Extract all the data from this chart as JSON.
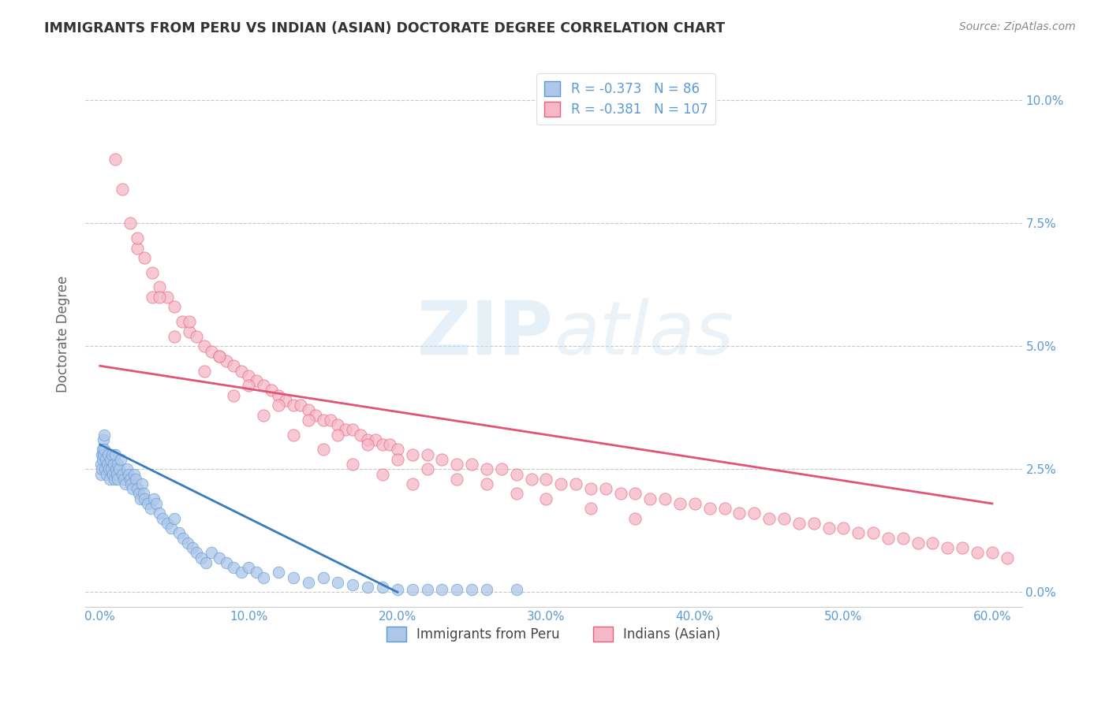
{
  "title": "IMMIGRANTS FROM PERU VS INDIAN (ASIAN) DOCTORATE DEGREE CORRELATION CHART",
  "source": "Source: ZipAtlas.com",
  "xlabel_vals": [
    0.0,
    10.0,
    20.0,
    30.0,
    40.0,
    50.0,
    60.0
  ],
  "ylabel_vals": [
    0.0,
    2.5,
    5.0,
    7.5,
    10.0
  ],
  "ylabel_label": "Doctorate Degree",
  "legend_peru_label": "Immigrants from Peru",
  "legend_indian_label": "Indians (Asian)",
  "peru_R": "-0.373",
  "peru_N": "86",
  "indian_R": "-0.381",
  "indian_N": "107",
  "peru_color": "#aec6e8",
  "peru_edge_color": "#5b9bd5",
  "peru_line_color": "#3a7abf",
  "indian_color": "#f5b8c8",
  "indian_edge_color": "#e8607a",
  "indian_line_color": "#e05575",
  "watermark": "ZIPatlas",
  "background_color": "#ffffff",
  "grid_color": "#c8c8c8",
  "title_color": "#333333",
  "axis_tick_color": "#5b9bd5",
  "legend_text_color": "#5b9bd5",
  "ylabel_text_color": "#666666",
  "peru_reg_x0": 0.0,
  "peru_reg_x1": 20.0,
  "peru_reg_y0": 3.0,
  "peru_reg_y1": 0.0,
  "indian_reg_x0": 0.0,
  "indian_reg_x1": 60.0,
  "indian_reg_y0": 4.6,
  "indian_reg_y1": 1.8,
  "peru_scatter_x": [
    0.05,
    0.08,
    0.1,
    0.12,
    0.15,
    0.18,
    0.2,
    0.22,
    0.25,
    0.3,
    0.35,
    0.4,
    0.45,
    0.5,
    0.55,
    0.6,
    0.65,
    0.7,
    0.75,
    0.8,
    0.85,
    0.9,
    0.95,
    1.0,
    1.05,
    1.1,
    1.15,
    1.2,
    1.3,
    1.4,
    1.5,
    1.6,
    1.7,
    1.8,
    1.9,
    2.0,
    2.1,
    2.2,
    2.3,
    2.4,
    2.5,
    2.6,
    2.7,
    2.8,
    2.9,
    3.0,
    3.2,
    3.4,
    3.6,
    3.8,
    4.0,
    4.2,
    4.5,
    4.8,
    5.0,
    5.3,
    5.6,
    5.9,
    6.2,
    6.5,
    6.8,
    7.1,
    7.5,
    8.0,
    8.5,
    9.0,
    9.5,
    10.0,
    10.5,
    11.0,
    12.0,
    13.0,
    14.0,
    15.0,
    16.0,
    17.0,
    18.0,
    19.0,
    20.0,
    21.0,
    22.0,
    23.0,
    24.0,
    25.0,
    26.0,
    28.0
  ],
  "peru_scatter_y": [
    2.4,
    2.6,
    2.8,
    2.5,
    2.7,
    2.9,
    3.1,
    2.8,
    3.2,
    2.9,
    2.5,
    2.7,
    2.4,
    2.6,
    2.8,
    2.5,
    2.3,
    2.7,
    2.5,
    2.8,
    2.4,
    2.6,
    2.3,
    2.8,
    2.5,
    2.4,
    2.6,
    2.3,
    2.5,
    2.7,
    2.4,
    2.3,
    2.2,
    2.5,
    2.4,
    2.3,
    2.2,
    2.1,
    2.4,
    2.3,
    2.1,
    2.0,
    1.9,
    2.2,
    2.0,
    1.9,
    1.8,
    1.7,
    1.9,
    1.8,
    1.6,
    1.5,
    1.4,
    1.3,
    1.5,
    1.2,
    1.1,
    1.0,
    0.9,
    0.8,
    0.7,
    0.6,
    0.8,
    0.7,
    0.6,
    0.5,
    0.4,
    0.5,
    0.4,
    0.3,
    0.4,
    0.3,
    0.2,
    0.3,
    0.2,
    0.15,
    0.1,
    0.1,
    0.05,
    0.05,
    0.05,
    0.05,
    0.05,
    0.05,
    0.05,
    0.05
  ],
  "indian_scatter_x": [
    1.0,
    1.5,
    2.0,
    2.5,
    3.0,
    3.5,
    4.0,
    4.5,
    5.0,
    5.5,
    6.0,
    6.5,
    7.0,
    7.5,
    8.0,
    8.5,
    9.0,
    9.5,
    10.0,
    10.5,
    11.0,
    11.5,
    12.0,
    12.5,
    13.0,
    13.5,
    14.0,
    14.5,
    15.0,
    15.5,
    16.0,
    16.5,
    17.0,
    17.5,
    18.0,
    18.5,
    19.0,
    19.5,
    20.0,
    21.0,
    22.0,
    23.0,
    24.0,
    25.0,
    26.0,
    27.0,
    28.0,
    29.0,
    30.0,
    31.0,
    32.0,
    33.0,
    34.0,
    35.0,
    36.0,
    37.0,
    38.0,
    39.0,
    40.0,
    41.0,
    42.0,
    43.0,
    44.0,
    45.0,
    46.0,
    47.0,
    48.0,
    49.0,
    50.0,
    51.0,
    52.0,
    53.0,
    54.0,
    55.0,
    56.0,
    57.0,
    58.0,
    59.0,
    60.0,
    61.0,
    6.0,
    8.0,
    10.0,
    12.0,
    14.0,
    16.0,
    18.0,
    20.0,
    22.0,
    24.0,
    3.5,
    5.0,
    7.0,
    9.0,
    11.0,
    13.0,
    15.0,
    17.0,
    19.0,
    21.0,
    2.5,
    4.0,
    26.0,
    28.0,
    30.0,
    33.0,
    36.0
  ],
  "indian_scatter_y": [
    8.8,
    8.2,
    7.5,
    7.0,
    6.8,
    6.5,
    6.2,
    6.0,
    5.8,
    5.5,
    5.3,
    5.2,
    5.0,
    4.9,
    4.8,
    4.7,
    4.6,
    4.5,
    4.4,
    4.3,
    4.2,
    4.1,
    4.0,
    3.9,
    3.8,
    3.8,
    3.7,
    3.6,
    3.5,
    3.5,
    3.4,
    3.3,
    3.3,
    3.2,
    3.1,
    3.1,
    3.0,
    3.0,
    2.9,
    2.8,
    2.8,
    2.7,
    2.6,
    2.6,
    2.5,
    2.5,
    2.4,
    2.3,
    2.3,
    2.2,
    2.2,
    2.1,
    2.1,
    2.0,
    2.0,
    1.9,
    1.9,
    1.8,
    1.8,
    1.7,
    1.7,
    1.6,
    1.6,
    1.5,
    1.5,
    1.4,
    1.4,
    1.3,
    1.3,
    1.2,
    1.2,
    1.1,
    1.1,
    1.0,
    1.0,
    0.9,
    0.9,
    0.8,
    0.8,
    0.7,
    5.5,
    4.8,
    4.2,
    3.8,
    3.5,
    3.2,
    3.0,
    2.7,
    2.5,
    2.3,
    6.0,
    5.2,
    4.5,
    4.0,
    3.6,
    3.2,
    2.9,
    2.6,
    2.4,
    2.2,
    7.2,
    6.0,
    2.2,
    2.0,
    1.9,
    1.7,
    1.5
  ],
  "xlim": [
    -1.0,
    62.0
  ],
  "ylim": [
    -0.3,
    10.8
  ]
}
